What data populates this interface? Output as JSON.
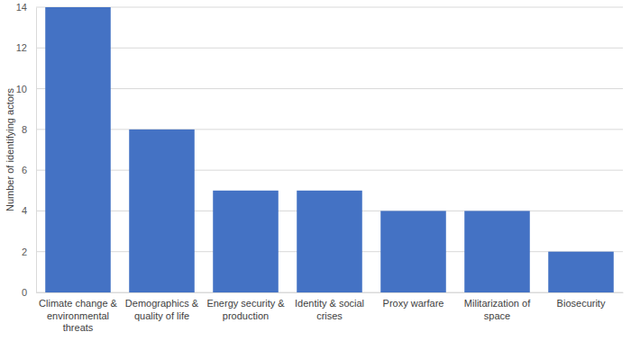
{
  "chart_data": {
    "type": "bar",
    "y_label": "Number of identifying actors",
    "categories": [
      "Climate change & environmental threats",
      "Demographics & quality of life",
      "Energy security & production",
      "Identity & social crises",
      "Proxy warfare",
      "Militarization of space",
      "Biosecurity"
    ],
    "values": [
      14,
      8,
      5,
      5,
      4,
      4,
      2
    ],
    "color": "#4472c4",
    "ylim": [
      0,
      14
    ],
    "yticks": [
      0,
      2,
      4,
      6,
      8,
      10,
      12,
      14
    ],
    "grid": true
  }
}
